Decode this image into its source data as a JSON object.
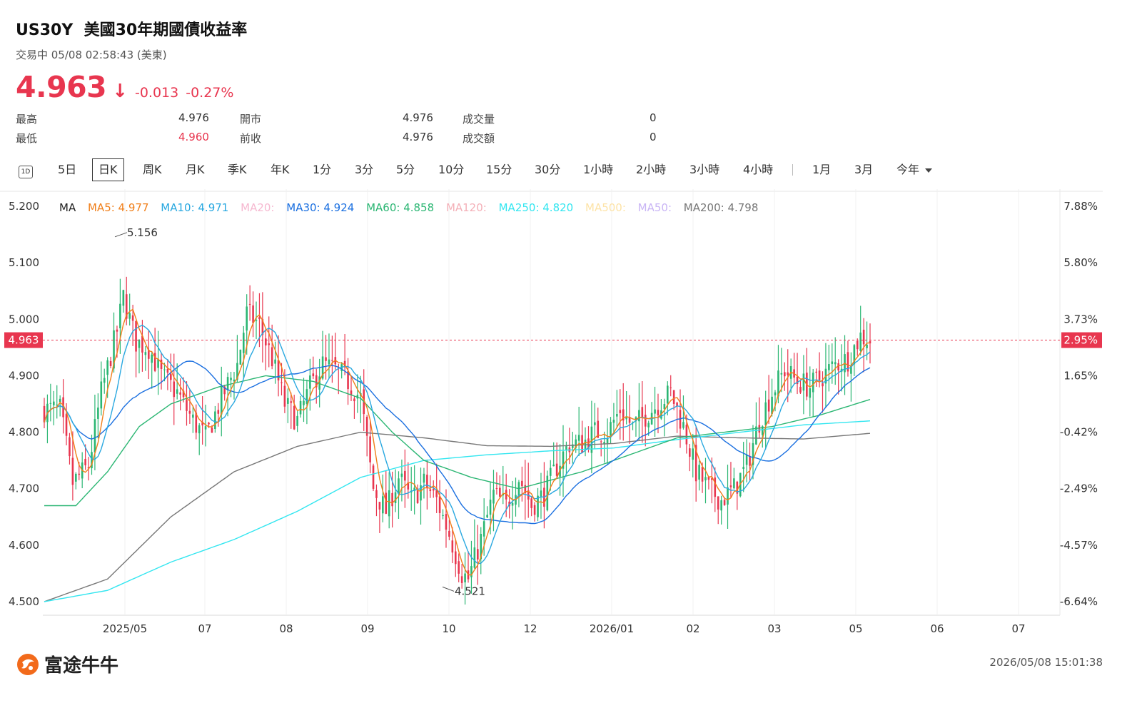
{
  "header": {
    "symbol": "US30Y",
    "name": "美國30年期國債收益率",
    "status": "交易中 05/08 02:58:43 (美東)",
    "price": "4.963",
    "change": "-0.013",
    "change_pct": "-0.27%"
  },
  "stats": [
    {
      "label": "最高",
      "value": "4.976"
    },
    {
      "label": "最低",
      "value": "4.960"
    },
    {
      "label": "開市",
      "value": "4.976"
    },
    {
      "label": "前收",
      "value": "4.976"
    },
    {
      "label": "成交量",
      "value": "0"
    },
    {
      "label": "成交額",
      "value": "0"
    }
  ],
  "tabs": [
    "1D",
    "5日",
    "日K",
    "周K",
    "月K",
    "季K",
    "年K",
    "1分",
    "3分",
    "5分",
    "10分",
    "15分",
    "30分",
    "1小時",
    "2小時",
    "3小時",
    "4小時",
    "1月",
    "3月",
    "今年"
  ],
  "active_tab": "日K",
  "legend": {
    "ma": "MA",
    "ma5": "MA5: 4.977",
    "ma10": "MA10: 4.971",
    "ma20": "MA20:",
    "ma30": "MA30: 4.924",
    "ma60": "MA60: 4.858",
    "ma120": "MA120:",
    "ma250": "MA250: 4.820",
    "ma500": "MA500:",
    "ma50": "MA50:",
    "ma200": "MA200: 4.798"
  },
  "colors": {
    "up": "#2bb673",
    "down": "#e8364f",
    "ma5": "#f07f1a",
    "ma10": "#29a8e0",
    "ma20": "#f6b8d0",
    "ma30": "#1a6fe0",
    "ma60": "#2bb673",
    "ma120": "#f4b0b8",
    "ma250": "#33e6f0",
    "ma500": "#fde3a7",
    "ma50": "#c9b5f5",
    "ma200": "#777777",
    "accent": "#e8364f"
  },
  "chart_data": {
    "type": "candlestick",
    "y_ticks": [
      "5.200",
      "5.100",
      "5.000",
      "4.900",
      "4.800",
      "4.700",
      "4.600",
      "4.500"
    ],
    "y_range": [
      4.5,
      5.2
    ],
    "pct_ticks": [
      "7.88%",
      "5.80%",
      "3.73%",
      "1.65%",
      "-0.42%",
      "-2.49%",
      "-4.57%",
      "-6.64%"
    ],
    "x_labels": [
      "2025/05",
      "07",
      "08",
      "09",
      "10",
      "12",
      "2026/01",
      "02",
      "03",
      "05",
      "06",
      "07"
    ],
    "current_price": "4.963",
    "current_pct": "2.95%",
    "high_label": "5.156",
    "low_label": "4.521",
    "key_points": [
      [
        0,
        4.84
      ],
      [
        5,
        4.84
      ],
      [
        9,
        4.71
      ],
      [
        14,
        4.74
      ],
      [
        18,
        4.87
      ],
      [
        23,
        4.98
      ],
      [
        25,
        5.04
      ],
      [
        29,
        4.96
      ],
      [
        33,
        4.95
      ],
      [
        37,
        4.9
      ],
      [
        42,
        4.87
      ],
      [
        47,
        4.82
      ],
      [
        51,
        4.79
      ],
      [
        56,
        4.86
      ],
      [
        61,
        4.92
      ],
      [
        64,
        5.01
      ],
      [
        68,
        4.99
      ],
      [
        72,
        4.93
      ],
      [
        76,
        4.85
      ],
      [
        80,
        4.82
      ],
      [
        84,
        4.88
      ],
      [
        88,
        4.92
      ],
      [
        92,
        4.91
      ],
      [
        96,
        4.89
      ],
      [
        100,
        4.86
      ],
      [
        104,
        4.7
      ],
      [
        108,
        4.66
      ],
      [
        112,
        4.72
      ],
      [
        116,
        4.68
      ],
      [
        120,
        4.71
      ],
      [
        124,
        4.68
      ],
      [
        128,
        4.62
      ],
      [
        132,
        4.55
      ],
      [
        134,
        4.54
      ],
      [
        138,
        4.61
      ],
      [
        142,
        4.69
      ],
      [
        146,
        4.67
      ],
      [
        150,
        4.72
      ],
      [
        154,
        4.67
      ],
      [
        158,
        4.69
      ],
      [
        162,
        4.74
      ],
      [
        166,
        4.78
      ],
      [
        170,
        4.78
      ],
      [
        174,
        4.8
      ],
      [
        178,
        4.8
      ],
      [
        182,
        4.84
      ],
      [
        186,
        4.81
      ],
      [
        190,
        4.83
      ],
      [
        194,
        4.85
      ],
      [
        198,
        4.87
      ],
      [
        202,
        4.81
      ],
      [
        206,
        4.73
      ],
      [
        210,
        4.7
      ],
      [
        214,
        4.68
      ],
      [
        218,
        4.7
      ],
      [
        222,
        4.74
      ],
      [
        226,
        4.82
      ],
      [
        230,
        4.87
      ],
      [
        234,
        4.91
      ],
      [
        238,
        4.89
      ],
      [
        242,
        4.88
      ],
      [
        246,
        4.9
      ],
      [
        250,
        4.92
      ],
      [
        254,
        4.93
      ],
      [
        258,
        4.97
      ],
      [
        261,
        4.963
      ]
    ],
    "ma_values": [
      {
        "name": "MA200",
        "anchors": [
          [
            0,
            4.5
          ],
          [
            20,
            4.54
          ],
          [
            40,
            4.65
          ],
          [
            60,
            4.73
          ],
          [
            80,
            4.775
          ],
          [
            100,
            4.8
          ],
          [
            120,
            4.79
          ],
          [
            140,
            4.776
          ],
          [
            160,
            4.775
          ],
          [
            180,
            4.78
          ],
          [
            200,
            4.793
          ],
          [
            220,
            4.79
          ],
          [
            240,
            4.788
          ],
          [
            261,
            4.798
          ]
        ]
      },
      {
        "name": "MA250",
        "anchors": [
          [
            0,
            4.5
          ],
          [
            20,
            4.52
          ],
          [
            40,
            4.57
          ],
          [
            60,
            4.61
          ],
          [
            80,
            4.66
          ],
          [
            100,
            4.72
          ],
          [
            120,
            4.75
          ],
          [
            140,
            4.76
          ],
          [
            160,
            4.767
          ],
          [
            180,
            4.772
          ],
          [
            200,
            4.787
          ],
          [
            220,
            4.8
          ],
          [
            240,
            4.813
          ],
          [
            261,
            4.82
          ]
        ]
      },
      {
        "name": "MA60",
        "anchors": [
          [
            0,
            4.67
          ],
          [
            10,
            4.67
          ],
          [
            20,
            4.73
          ],
          [
            30,
            4.81
          ],
          [
            40,
            4.85
          ],
          [
            55,
            4.88
          ],
          [
            70,
            4.9
          ],
          [
            85,
            4.89
          ],
          [
            100,
            4.86
          ],
          [
            110,
            4.8
          ],
          [
            120,
            4.75
          ],
          [
            135,
            4.72
          ],
          [
            150,
            4.7
          ],
          [
            170,
            4.73
          ],
          [
            185,
            4.76
          ],
          [
            200,
            4.79
          ],
          [
            215,
            4.8
          ],
          [
            230,
            4.81
          ],
          [
            245,
            4.83
          ],
          [
            261,
            4.858
          ]
        ]
      }
    ]
  }
}
